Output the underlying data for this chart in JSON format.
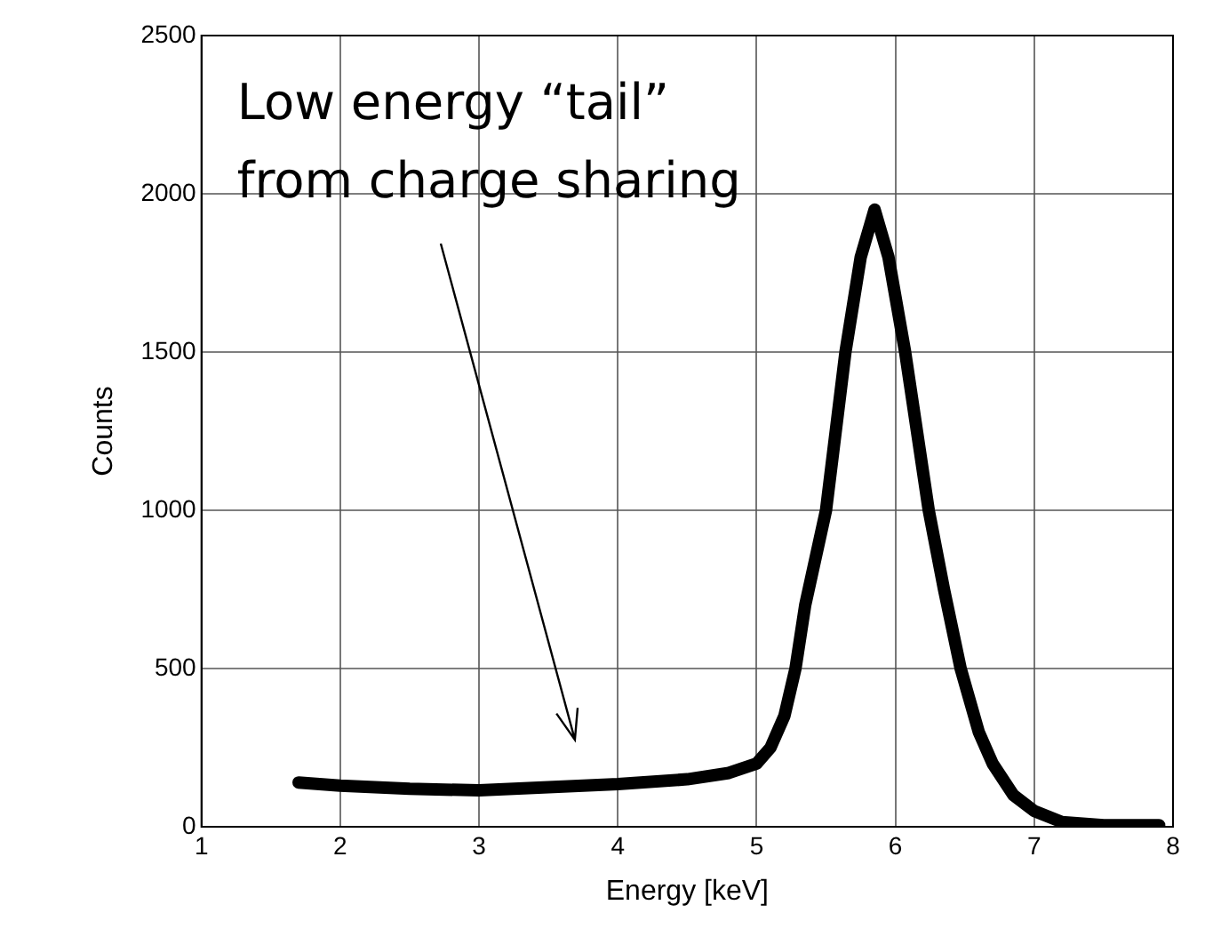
{
  "chart_data": {
    "type": "line",
    "xlabel": "Energy [keV]",
    "ylabel": "Counts",
    "x": [
      1.7,
      2.0,
      2.5,
      3.0,
      3.5,
      4.0,
      4.5,
      4.8,
      5.0,
      5.1,
      5.2,
      5.28,
      5.35,
      5.5,
      5.64,
      5.75,
      5.85,
      5.95,
      6.07,
      6.24,
      6.35,
      6.47,
      6.6,
      6.7,
      6.85,
      7.0,
      7.2,
      7.5,
      7.9
    ],
    "series": [
      {
        "color": "#000000",
        "values": [
          140,
          130,
          120,
          115,
          125,
          135,
          150,
          170,
          200,
          250,
          350,
          500,
          700,
          1000,
          1500,
          1800,
          1950,
          1800,
          1500,
          1000,
          750,
          500,
          300,
          200,
          100,
          50,
          15,
          5,
          5
        ]
      }
    ],
    "xlim": [
      1,
      8
    ],
    "xticks": [
      1,
      2,
      3,
      4,
      5,
      6,
      7,
      8
    ],
    "ylim": [
      0,
      2500
    ],
    "yticks": [
      0,
      500,
      1000,
      1500,
      2000,
      2500
    ],
    "grid": true,
    "marker": "none",
    "line_style": "solid",
    "annotations": [
      "Low energy “tail”\nfrom charge sharing"
    ]
  }
}
